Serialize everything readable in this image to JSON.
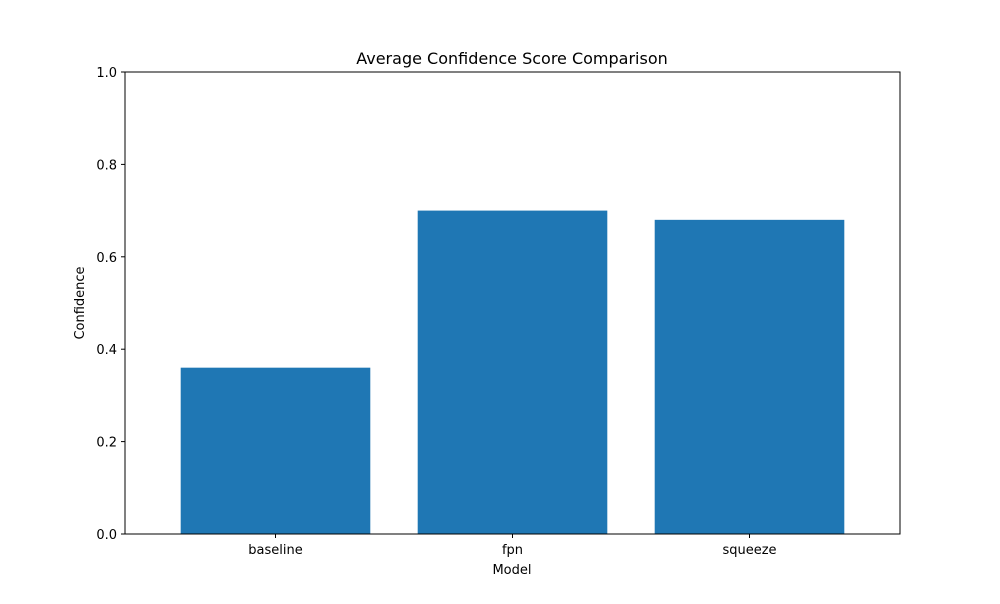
{
  "chart_data": {
    "type": "bar",
    "title": "Average Confidence Score Comparison",
    "xlabel": "Model",
    "ylabel": "Confidence",
    "categories": [
      "baseline",
      "fpn",
      "squeeze"
    ],
    "values": [
      0.36,
      0.7,
      0.68
    ],
    "ylim": [
      0,
      1.0
    ],
    "yticks": [
      "0.0",
      "0.2",
      "0.4",
      "0.6",
      "0.8",
      "1.0"
    ],
    "ytick_values": [
      0,
      0.2,
      0.4,
      0.6,
      0.8,
      1.0
    ],
    "bar_color": "#1f77b4",
    "grid": false,
    "legend": false
  }
}
